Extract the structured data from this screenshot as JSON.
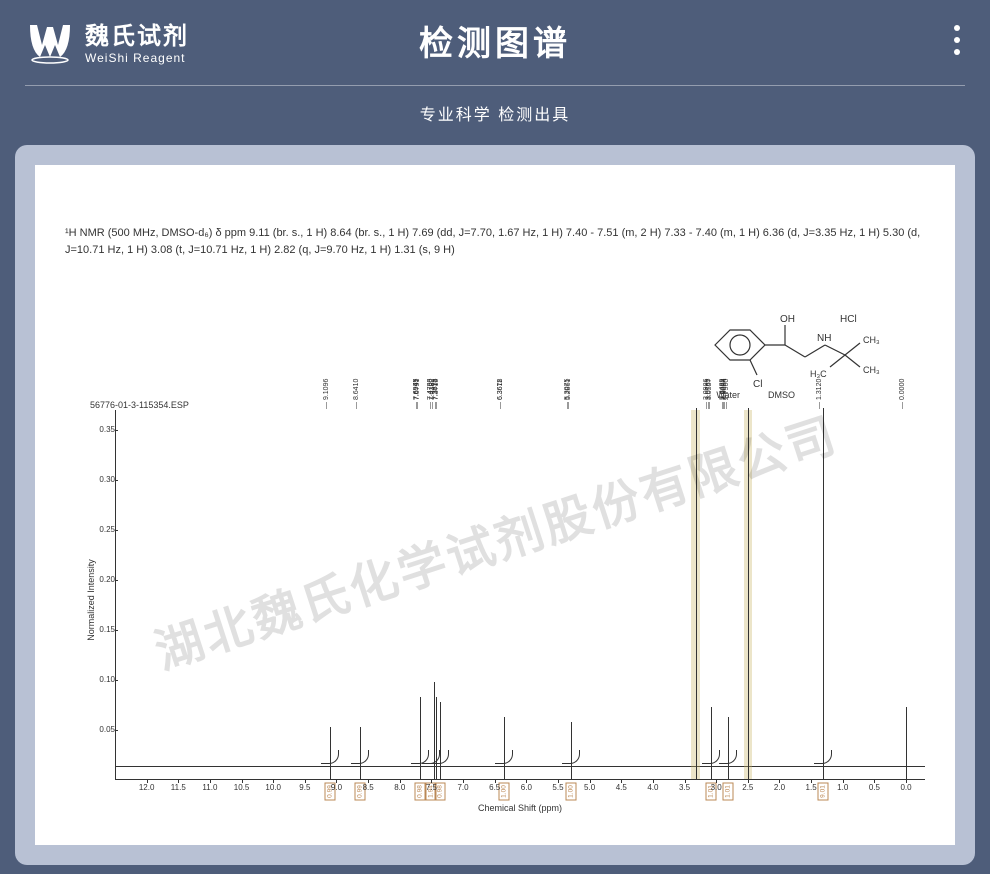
{
  "header": {
    "brand_cn": "魏氏试剂",
    "brand_en": "WeiShi Reagent",
    "title": "检测图谱",
    "subtitle": "专业科学 检测出具"
  },
  "nmr_description": "¹H NMR (500 MHz, DMSO-d₆) δ ppm 9.11 (br. s., 1 H) 8.64 (br. s., 1 H) 7.69 (dd, J=7.70, 1.67 Hz, 1 H) 7.40 - 7.51 (m, 2 H) 7.33 - 7.40 (m, 1 H) 6.36 (d, J=3.35 Hz, 1 H) 5.30 (d, J=10.71 Hz, 1 H) 3.08 (t, J=10.71 Hz, 1 H) 2.82 (q, J=9.70 Hz, 1 H) 1.31 (s, 9 H)",
  "sample_id": "56776-01-3-115354.ESP",
  "solvent_labels": {
    "water": "Water",
    "dmso": "DMSO"
  },
  "watermark": "湖北魏氏化学试剂股份有限公司",
  "chart": {
    "type": "nmr_spectrum",
    "xlabel": "Chemical Shift (ppm)",
    "ylabel": "Normalized Intensity",
    "xlim": [
      -0.3,
      12.5
    ],
    "ylim": [
      0,
      0.37
    ],
    "xticks": [
      12.0,
      11.5,
      11.0,
      10.5,
      10.0,
      9.5,
      9.0,
      8.5,
      8.0,
      7.5,
      7.0,
      6.5,
      6.0,
      5.5,
      5.0,
      4.5,
      4.0,
      3.5,
      3.0,
      2.5,
      2.0,
      1.5,
      1.0,
      0.5,
      0
    ],
    "yticks": [
      0.05,
      0.1,
      0.15,
      0.2,
      0.25,
      0.3,
      0.35
    ],
    "axis_color": "#333333",
    "background_color": "#ffffff",
    "tick_fontsize": 8,
    "label_fontsize": 9,
    "peak_labels": [
      {
        "ppm": 9.1096,
        "label": "9.1096"
      },
      {
        "ppm": 8.641,
        "label": "8.6410"
      },
      {
        "ppm": 7.6979,
        "label": "7.6979"
      },
      {
        "ppm": 7.6945,
        "label": "7.6945"
      },
      {
        "ppm": 7.6791,
        "label": "7.6791"
      },
      {
        "ppm": 7.4763,
        "label": "7.4763"
      },
      {
        "ppm": 7.4736,
        "label": "7.4736"
      },
      {
        "ppm": 7.4382,
        "label": "7.4382"
      },
      {
        "ppm": 7.3873,
        "label": "7.3873"
      },
      {
        "ppm": 7.3833,
        "label": "7.3833"
      },
      {
        "ppm": 7.3719,
        "label": "7.3719"
      },
      {
        "ppm": 6.3678,
        "label": "6.3678"
      },
      {
        "ppm": 6.3611,
        "label": "6.3611"
      },
      {
        "ppm": 5.3075,
        "label": "5.3075"
      },
      {
        "ppm": 5.2861,
        "label": "5.2861"
      },
      {
        "ppm": 3.0986,
        "label": "3.0986"
      },
      {
        "ppm": 3.0765,
        "label": "3.0765"
      },
      {
        "ppm": 3.0557,
        "label": "3.0557"
      },
      {
        "ppm": 2.8489,
        "label": "2.8489"
      },
      {
        "ppm": 2.8288,
        "label": "2.8288"
      },
      {
        "ppm": 2.8094,
        "label": "2.8094"
      },
      {
        "ppm": 2.79,
        "label": "2.7900"
      },
      {
        "ppm": 1.312,
        "label": "1.3120"
      },
      {
        "ppm": 0.0,
        "label": "0.0000"
      }
    ],
    "peaks": [
      {
        "ppm": 9.11,
        "height": 0.04
      },
      {
        "ppm": 8.64,
        "height": 0.04
      },
      {
        "ppm": 7.69,
        "height": 0.07
      },
      {
        "ppm": 7.47,
        "height": 0.085
      },
      {
        "ppm": 7.44,
        "height": 0.07
      },
      {
        "ppm": 7.38,
        "height": 0.065
      },
      {
        "ppm": 6.36,
        "height": 0.05
      },
      {
        "ppm": 5.3,
        "height": 0.045
      },
      {
        "ppm": 3.33,
        "height": 0.36
      },
      {
        "ppm": 3.08,
        "height": 0.06
      },
      {
        "ppm": 2.82,
        "height": 0.05
      },
      {
        "ppm": 2.5,
        "height": 0.36
      },
      {
        "ppm": 1.31,
        "height": 0.36
      },
      {
        "ppm": 0.0,
        "height": 0.06
      }
    ],
    "integrals": [
      {
        "ppm": 9.11,
        "value": "0.99"
      },
      {
        "ppm": 8.64,
        "value": "0.99"
      },
      {
        "ppm": 7.69,
        "value": "0.98"
      },
      {
        "ppm": 7.52,
        "value": "1.94"
      },
      {
        "ppm": 7.38,
        "value": "0.98"
      },
      {
        "ppm": 6.36,
        "value": "1.00"
      },
      {
        "ppm": 5.3,
        "value": "1.00"
      },
      {
        "ppm": 3.08,
        "value": "1.01"
      },
      {
        "ppm": 2.82,
        "value": "1.01"
      },
      {
        "ppm": 1.31,
        "value": "9.01"
      }
    ],
    "solvent_bands": [
      {
        "ppm": 3.33,
        "width": 0.15,
        "color": "rgba(200,180,100,0.35)"
      },
      {
        "ppm": 2.5,
        "width": 0.12,
        "color": "rgba(200,180,100,0.35)"
      }
    ],
    "integral_box_color": "#b85",
    "peak_color": "#333333"
  },
  "structure": {
    "labels": {
      "oh": "OH",
      "hcl": "HCl",
      "nh": "NH",
      "cl": "Cl",
      "ch3a": "CH₃",
      "ch3b": "CH₃",
      "ch3c": "H₃C"
    }
  }
}
